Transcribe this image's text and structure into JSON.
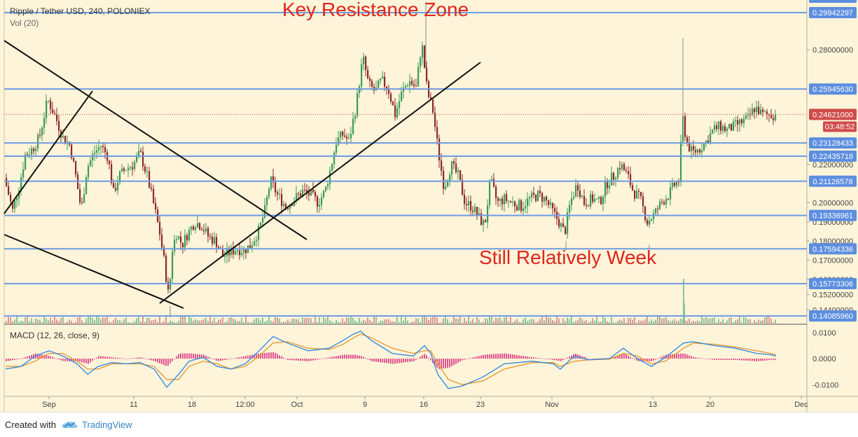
{
  "chart_data": {
    "type": "candlestick",
    "title": "Ripple / Tether USD, 240, POLONIEX",
    "volume_label": "Vol (20)",
    "annotations": {
      "top": "Key Resistance Zone",
      "bottom": "Still Relatively Week"
    },
    "price_axis": {
      "ylim": [
        0.1365,
        0.306
      ],
      "ticks": [
        0.28,
        0.22,
        0.2,
        0.19,
        0.18,
        0.17,
        0.16,
        0.152,
        0.144
      ],
      "tick_labels": [
        "0.28000000",
        "0.22000000",
        "0.20000000",
        "0.19000000",
        "0.18000000",
        "0.17000000",
        "0.16000000",
        "0.15200000",
        "0.14400000"
      ]
    },
    "levels": [
      {
        "value": 0.29942297,
        "label": "0.29942297"
      },
      {
        "value": 0.2594563,
        "label": "0.25945630"
      },
      {
        "value": 0.23128433,
        "label": "0.23128433"
      },
      {
        "value": 0.22435718,
        "label": "0.22435718"
      },
      {
        "value": 0.21126578,
        "label": "0.21126578"
      },
      {
        "value": 0.19336961,
        "label": "0.19336961"
      },
      {
        "value": 0.17594336,
        "label": "0.17594336"
      },
      {
        "value": 0.15773306,
        "label": "0.15773306"
      },
      {
        "value": 0.1408596,
        "label": "0.14085960"
      }
    ],
    "current_price": {
      "value": 0.24621,
      "label": "0.24621000",
      "countdown": "03:48:52"
    },
    "x_axis": {
      "tick_labels": [
        "Sep",
        "11",
        "18",
        "12:00",
        "Oct",
        "9",
        "16",
        "23",
        "Nov",
        "13",
        "20",
        "Dec"
      ]
    },
    "price_path": [
      [
        8,
        0.213
      ],
      [
        20,
        0.196
      ],
      [
        30,
        0.21
      ],
      [
        38,
        0.225
      ],
      [
        48,
        0.228
      ],
      [
        58,
        0.234
      ],
      [
        70,
        0.254
      ],
      [
        82,
        0.244
      ],
      [
        92,
        0.234
      ],
      [
        102,
        0.23
      ],
      [
        110,
        0.214
      ],
      [
        118,
        0.196
      ],
      [
        126,
        0.218
      ],
      [
        136,
        0.226
      ],
      [
        146,
        0.23
      ],
      [
        156,
        0.224
      ],
      [
        164,
        0.205
      ],
      [
        172,
        0.214
      ],
      [
        182,
        0.218
      ],
      [
        192,
        0.22
      ],
      [
        202,
        0.226
      ],
      [
        212,
        0.214
      ],
      [
        222,
        0.198
      ],
      [
        230,
        0.184
      ],
      [
        236,
        0.17
      ],
      [
        243,
        0.15
      ],
      [
        248,
        0.176
      ],
      [
        254,
        0.184
      ],
      [
        262,
        0.178
      ],
      [
        270,
        0.184
      ],
      [
        280,
        0.19
      ],
      [
        290,
        0.188
      ],
      [
        300,
        0.182
      ],
      [
        310,
        0.18
      ],
      [
        320,
        0.172
      ],
      [
        330,
        0.174
      ],
      [
        340,
        0.176
      ],
      [
        350,
        0.175
      ],
      [
        360,
        0.178
      ],
      [
        372,
        0.186
      ],
      [
        380,
        0.196
      ],
      [
        388,
        0.212
      ],
      [
        398,
        0.204
      ],
      [
        410,
        0.198
      ],
      [
        422,
        0.202
      ],
      [
        434,
        0.206
      ],
      [
        446,
        0.204
      ],
      [
        456,
        0.2
      ],
      [
        466,
        0.206
      ],
      [
        474,
        0.218
      ],
      [
        482,
        0.232
      ],
      [
        492,
        0.236
      ],
      [
        500,
        0.232
      ],
      [
        510,
        0.25
      ],
      [
        520,
        0.276
      ],
      [
        528,
        0.262
      ],
      [
        538,
        0.258
      ],
      [
        546,
        0.264
      ],
      [
        556,
        0.26
      ],
      [
        566,
        0.246
      ],
      [
        576,
        0.258
      ],
      [
        586,
        0.264
      ],
      [
        596,
        0.26
      ],
      [
        604,
        0.284
      ],
      [
        612,
        0.258
      ],
      [
        620,
        0.248
      ],
      [
        628,
        0.226
      ],
      [
        636,
        0.208
      ],
      [
        646,
        0.22
      ],
      [
        656,
        0.214
      ],
      [
        666,
        0.2
      ],
      [
        676,
        0.198
      ],
      [
        686,
        0.192
      ],
      [
        694,
        0.188
      ],
      [
        702,
        0.212
      ],
      [
        712,
        0.2
      ],
      [
        722,
        0.202
      ],
      [
        734,
        0.2
      ],
      [
        746,
        0.198
      ],
      [
        758,
        0.202
      ],
      [
        770,
        0.204
      ],
      [
        780,
        0.202
      ],
      [
        790,
        0.196
      ],
      [
        800,
        0.19
      ],
      [
        808,
        0.184
      ],
      [
        816,
        0.2
      ],
      [
        826,
        0.21
      ],
      [
        836,
        0.2
      ],
      [
        848,
        0.202
      ],
      [
        858,
        0.2
      ],
      [
        868,
        0.21
      ],
      [
        878,
        0.214
      ],
      [
        888,
        0.22
      ],
      [
        898,
        0.214
      ],
      [
        906,
        0.206
      ],
      [
        916,
        0.202
      ],
      [
        926,
        0.19
      ],
      [
        936,
        0.194
      ],
      [
        946,
        0.2
      ],
      [
        956,
        0.204
      ],
      [
        966,
        0.21
      ],
      [
        972,
        0.212
      ],
      [
        976,
        0.246
      ],
      [
        982,
        0.232
      ],
      [
        990,
        0.226
      ],
      [
        1000,
        0.228
      ],
      [
        1010,
        0.232
      ],
      [
        1020,
        0.238
      ],
      [
        1030,
        0.24
      ],
      [
        1040,
        0.238
      ],
      [
        1050,
        0.24
      ],
      [
        1060,
        0.242
      ],
      [
        1070,
        0.244
      ],
      [
        1080,
        0.25
      ],
      [
        1090,
        0.246
      ],
      [
        1100,
        0.246
      ]
    ],
    "macd": {
      "label": "MACD (12, 26, close, 9)",
      "ylim": [
        -0.0145,
        0.0132
      ],
      "ticks": [
        0.01,
        0.0,
        -0.01
      ],
      "tick_labels": [
        "0.0100",
        "0.0000",
        "-0.0100"
      ],
      "macd_line": [
        [
          8,
          -0.004
        ],
        [
          30,
          -0.003
        ],
        [
          50,
          0.001
        ],
        [
          70,
          0.003
        ],
        [
          90,
          0.001
        ],
        [
          110,
          -0.002
        ],
        [
          125,
          -0.006
        ],
        [
          140,
          -0.003
        ],
        [
          160,
          -0.0015
        ],
        [
          180,
          -0.002
        ],
        [
          200,
          -0.0015
        ],
        [
          220,
          -0.004
        ],
        [
          238,
          -0.011
        ],
        [
          255,
          -0.006
        ],
        [
          270,
          -0.001
        ],
        [
          290,
          0.0005
        ],
        [
          310,
          -0.003
        ],
        [
          330,
          -0.004
        ],
        [
          350,
          -0.002
        ],
        [
          370,
          0.003
        ],
        [
          390,
          0.0085
        ],
        [
          410,
          0.006
        ],
        [
          440,
          0.003
        ],
        [
          470,
          0.004
        ],
        [
          490,
          0.007
        ],
        [
          505,
          0.0095
        ],
        [
          515,
          0.0105
        ],
        [
          530,
          0.007
        ],
        [
          560,
          0.002
        ],
        [
          590,
          0.001
        ],
        [
          606,
          0.005
        ],
        [
          615,
          0.002
        ],
        [
          625,
          -0.006
        ],
        [
          640,
          -0.0115
        ],
        [
          660,
          -0.0105
        ],
        [
          690,
          -0.007
        ],
        [
          720,
          -0.002
        ],
        [
          760,
          -0.001
        ],
        [
          790,
          -0.002
        ],
        [
          800,
          -0.004
        ],
        [
          820,
          0.001
        ],
        [
          840,
          -0.0005
        ],
        [
          870,
          0.0
        ],
        [
          890,
          0.004
        ],
        [
          910,
          0.0
        ],
        [
          930,
          -0.003
        ],
        [
          950,
          0.0005
        ],
        [
          976,
          0.006
        ],
        [
          990,
          0.0065
        ],
        [
          1020,
          0.005
        ],
        [
          1050,
          0.004
        ],
        [
          1080,
          0.002
        ],
        [
          1100,
          0.0015
        ],
        [
          1108,
          0.001
        ]
      ],
      "signal_line": [
        [
          8,
          -0.003
        ],
        [
          30,
          -0.003
        ],
        [
          50,
          -0.001
        ],
        [
          70,
          0.002
        ],
        [
          90,
          0.002
        ],
        [
          110,
          -0.001
        ],
        [
          125,
          -0.004
        ],
        [
          140,
          -0.004
        ],
        [
          160,
          -0.002
        ],
        [
          180,
          -0.002
        ],
        [
          200,
          -0.002
        ],
        [
          220,
          -0.003
        ],
        [
          238,
          -0.008
        ],
        [
          255,
          -0.008
        ],
        [
          270,
          -0.003
        ],
        [
          290,
          -0.001
        ],
        [
          310,
          -0.002
        ],
        [
          330,
          -0.004
        ],
        [
          350,
          -0.003
        ],
        [
          370,
          0.001
        ],
        [
          390,
          0.006
        ],
        [
          410,
          0.0065
        ],
        [
          440,
          0.004
        ],
        [
          470,
          0.0035
        ],
        [
          490,
          0.0055
        ],
        [
          505,
          0.008
        ],
        [
          515,
          0.0095
        ],
        [
          530,
          0.008
        ],
        [
          560,
          0.004
        ],
        [
          590,
          0.002
        ],
        [
          606,
          0.003
        ],
        [
          615,
          0.003
        ],
        [
          625,
          -0.002
        ],
        [
          640,
          -0.008
        ],
        [
          660,
          -0.01
        ],
        [
          690,
          -0.0085
        ],
        [
          720,
          -0.004
        ],
        [
          760,
          -0.0015
        ],
        [
          790,
          -0.0015
        ],
        [
          800,
          -0.003
        ],
        [
          820,
          -0.001
        ],
        [
          840,
          -0.0005
        ],
        [
          870,
          -0.0002
        ],
        [
          890,
          0.002
        ],
        [
          910,
          0.001
        ],
        [
          930,
          -0.002
        ],
        [
          950,
          -0.001
        ],
        [
          976,
          0.004
        ],
        [
          990,
          0.006
        ],
        [
          1020,
          0.0055
        ],
        [
          1050,
          0.0045
        ],
        [
          1080,
          0.003
        ],
        [
          1100,
          0.002
        ],
        [
          1108,
          0.0015
        ]
      ]
    },
    "colors": {
      "background": "#fdf4d9",
      "up": "#3a9b54",
      "down": "#8b2a2a",
      "level_line": "#6f9be3",
      "axis_label_bg": "#5c8ee0",
      "current_price_bg": "#d04b4b",
      "macd_line": "#2f86e0",
      "signal_line": "#e8962a",
      "histogram": "#e0558e",
      "annotation_text": "#e0251d",
      "trend_line": "#111111"
    }
  },
  "footer": {
    "created_with": "Created with",
    "brand": "TradingView",
    "logo_icon": "cloud-logo-icon"
  }
}
